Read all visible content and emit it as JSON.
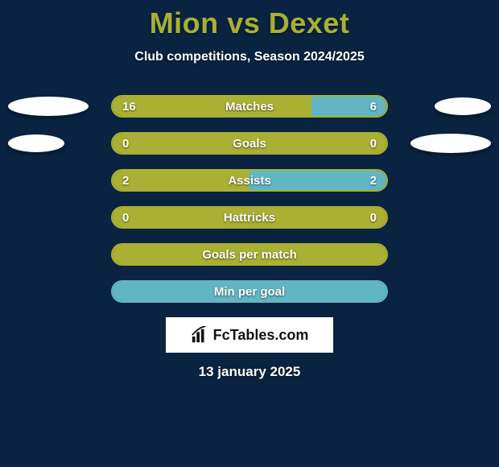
{
  "title_color": "#a9b033",
  "background_color": "#0a2340",
  "header": {
    "player_a": "Mion",
    "vs": "vs",
    "player_b": "Dexet",
    "subtitle": "Club competitions, Season 2024/2025"
  },
  "bar_area": {
    "track_width": 344,
    "track_height": 28,
    "border_radius": 14,
    "left_color": "#a9b033",
    "right_color": "#62b6c2",
    "border_color_default": "#a9b033"
  },
  "ellipses": {
    "color": "#ffffff",
    "rows": [
      {
        "left_w": 100,
        "left_h": 24,
        "right_w": 70,
        "right_h": 22
      },
      {
        "left_w": 70,
        "left_h": 22,
        "right_w": 100,
        "right_h": 24
      }
    ]
  },
  "rows": [
    {
      "label": "Matches",
      "left_value": "16",
      "right_value": "6",
      "left_num": 16,
      "right_num": 6,
      "show_values": true,
      "has_ellipses": true,
      "ellipse_row": 0
    },
    {
      "label": "Goals",
      "left_value": "0",
      "right_value": "0",
      "left_num": 0,
      "right_num": 0,
      "show_values": true,
      "has_ellipses": true,
      "ellipse_row": 1
    },
    {
      "label": "Assists",
      "left_value": "2",
      "right_value": "2",
      "left_num": 2,
      "right_num": 2,
      "show_values": true,
      "has_ellipses": false
    },
    {
      "label": "Hattricks",
      "left_value": "0",
      "right_value": "0",
      "left_num": 0,
      "right_num": 0,
      "show_values": true,
      "has_ellipses": false
    },
    {
      "label": "Goals per match",
      "left_value": "",
      "right_value": "",
      "left_num": 1,
      "right_num": 0,
      "show_values": false,
      "has_ellipses": false,
      "full_fill": true
    },
    {
      "label": "Min per goal",
      "left_value": "",
      "right_value": "",
      "left_num": 0,
      "right_num": 1,
      "show_values": false,
      "has_ellipses": false,
      "full_fill_right": true
    }
  ],
  "logo": {
    "text_prefix": "Fc",
    "text_bold": "Tables",
    "text_suffix": ".com"
  },
  "date": "13 january 2025"
}
